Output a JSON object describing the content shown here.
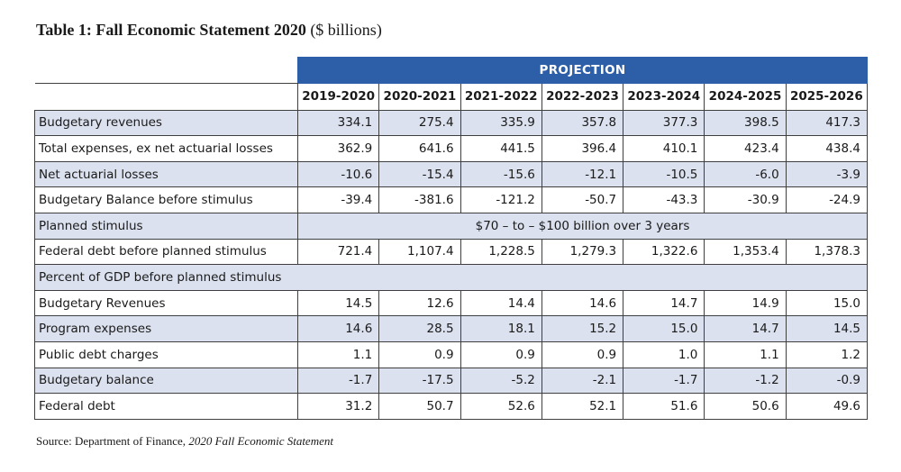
{
  "title": {
    "main": "Table 1: Fall Economic Statement 2020",
    "unit": "($ billions)"
  },
  "table": {
    "projection_label": "PROJECTION",
    "years": [
      "2019-2020",
      "2020-2021",
      "2021-2022",
      "2022-2023",
      "2023-2024",
      "2024-2025",
      "2025-2026"
    ],
    "rows": [
      {
        "label": "Budgetary revenues",
        "values": [
          "334.1",
          "275.4",
          "335.9",
          "357.8",
          "377.3",
          "398.5",
          "417.3"
        ]
      },
      {
        "label": "Total expenses, ex net actuarial losses",
        "values": [
          "362.9",
          "641.6",
          "441.5",
          "396.4",
          "410.1",
          "423.4",
          "438.4"
        ]
      },
      {
        "label": "Net actuarial losses",
        "values": [
          "-10.6",
          "-15.4",
          "-15.6",
          "-12.1",
          "-10.5",
          "-6.0",
          "-3.9"
        ]
      },
      {
        "label": "Budgetary Balance before stimulus",
        "values": [
          "-39.4",
          "-381.6",
          "-121.2",
          "-50.7",
          "-43.3",
          "-30.9",
          "-24.9"
        ]
      },
      {
        "label": "Planned stimulus",
        "span_text": "$70 – to – $100 billion over 3 years"
      },
      {
        "label": "Federal debt before planned stimulus",
        "values": [
          "721.4",
          "1,107.4",
          "1,228.5",
          "1,279.3",
          "1,322.6",
          "1,353.4",
          "1,378.3"
        ]
      },
      {
        "label": "Percent of GDP before planned stimulus"
      },
      {
        "label": "Budgetary Revenues",
        "values": [
          "14.5",
          "12.6",
          "14.4",
          "14.6",
          "14.7",
          "14.9",
          "15.0"
        ]
      },
      {
        "label": "Program expenses",
        "values": [
          "14.6",
          "28.5",
          "18.1",
          "15.2",
          "15.0",
          "14.7",
          "14.5"
        ]
      },
      {
        "label": "Public debt charges",
        "values": [
          "1.1",
          "0.9",
          "0.9",
          "0.9",
          "1.0",
          "1.1",
          "1.2"
        ]
      },
      {
        "label": "Budgetary balance",
        "values": [
          "-1.7",
          "-17.5",
          "-5.2",
          "-2.1",
          "-1.7",
          "-1.2",
          "-0.9"
        ]
      },
      {
        "label": "Federal debt",
        "values": [
          "31.2",
          "50.7",
          "52.6",
          "52.1",
          "51.6",
          "50.6",
          "49.6"
        ]
      }
    ]
  },
  "source": {
    "prefix": "Source: Department of Finance,",
    "publication": "2020 Fall Economic Statement"
  },
  "colors": {
    "header_blue": "#2d5ea8",
    "shaded_row": "#dbe1ee",
    "border": "#3f3f3f"
  }
}
